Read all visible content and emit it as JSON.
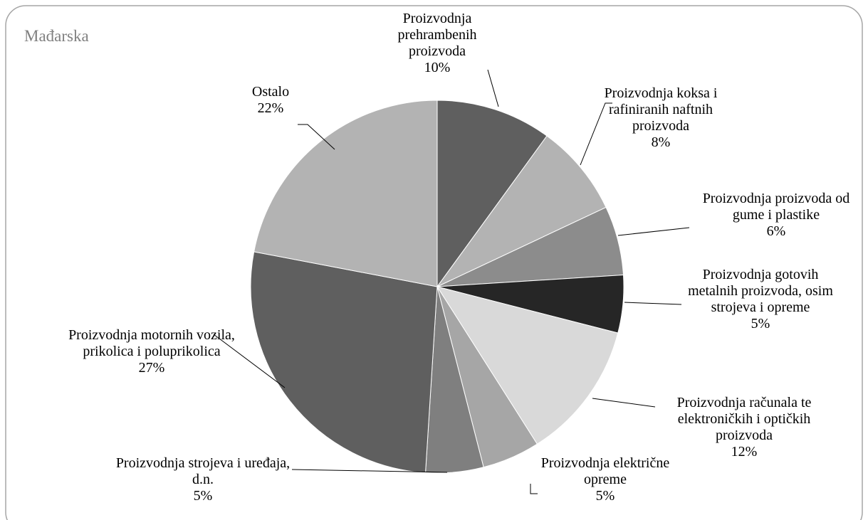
{
  "chart_data": {
    "type": "pie",
    "title": "Mađarska",
    "categories": [
      "Proizvodnja prehrambenih proizvoda",
      "Proizvodnja koksa i rafiniranih naftnih proizvoda",
      "Proizvodnja proizvoda od gume i plastike",
      "Proizvodnja gotovih metalnih proizvoda, osim strojeva i opreme",
      "Proizvodnja računala te elektroničkih i optičkih proizvoda",
      "Proizvodnja električne opreme",
      "Proizvodnja strojeva i uređaja, d.n.",
      "Proizvodnja motornih vozila, prikolica i poluprikolica",
      "Ostalo"
    ],
    "values": [
      10,
      8,
      6,
      5,
      12,
      5,
      5,
      27,
      22
    ],
    "value_labels": [
      "10%",
      "8%",
      "6%",
      "5%",
      "12%",
      "5%",
      "5%",
      "27%",
      "22%"
    ],
    "colors": [
      "#5f5f5f",
      "#b3b3b3",
      "#8c8c8c",
      "#262626",
      "#d9d9d9",
      "#a6a6a6",
      "#7f7f7f",
      "#5f5f5f",
      "#b3b3b3"
    ]
  }
}
